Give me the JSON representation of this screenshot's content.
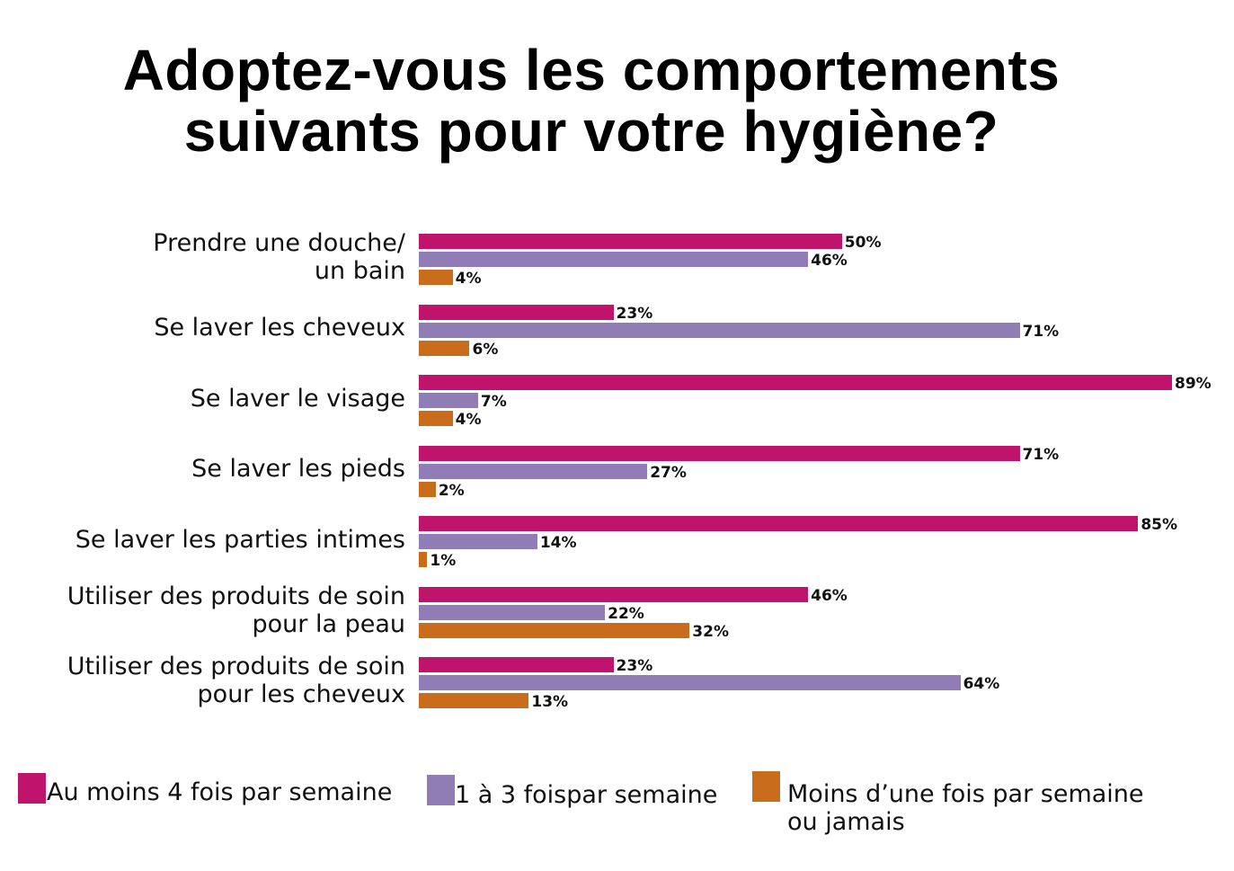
{
  "chart_data": {
    "type": "bar",
    "orientation": "horizontal",
    "title": "Adoptez-vous les comportements suivants pour votre hygiène?",
    "categories": [
      "Prendre une douche/\nun bain",
      "Se laver les cheveux",
      "Se laver le visage",
      "Se laver les pieds",
      "Se laver les parties intimes",
      "Utiliser des produits de soin\npour la peau",
      "Utiliser des produits de soin\npour les cheveux"
    ],
    "series": [
      {
        "name": "Au moins 4 fois par semaine",
        "color": "#c0136c",
        "values": [
          50,
          23,
          89,
          71,
          85,
          46,
          23
        ]
      },
      {
        "name": "1 à 3 foispar semaine",
        "color": "#917db5",
        "values": [
          46,
          71,
          7,
          27,
          14,
          22,
          64
        ]
      },
      {
        "name": "Moins d’une fois par semaine\nou jamais",
        "color": "#c96c1c",
        "values": [
          4,
          6,
          4,
          2,
          1,
          32,
          13
        ]
      }
    ],
    "value_suffix": "%",
    "xlim": [
      0,
      89
    ],
    "grid": false,
    "legend": "bottom"
  }
}
